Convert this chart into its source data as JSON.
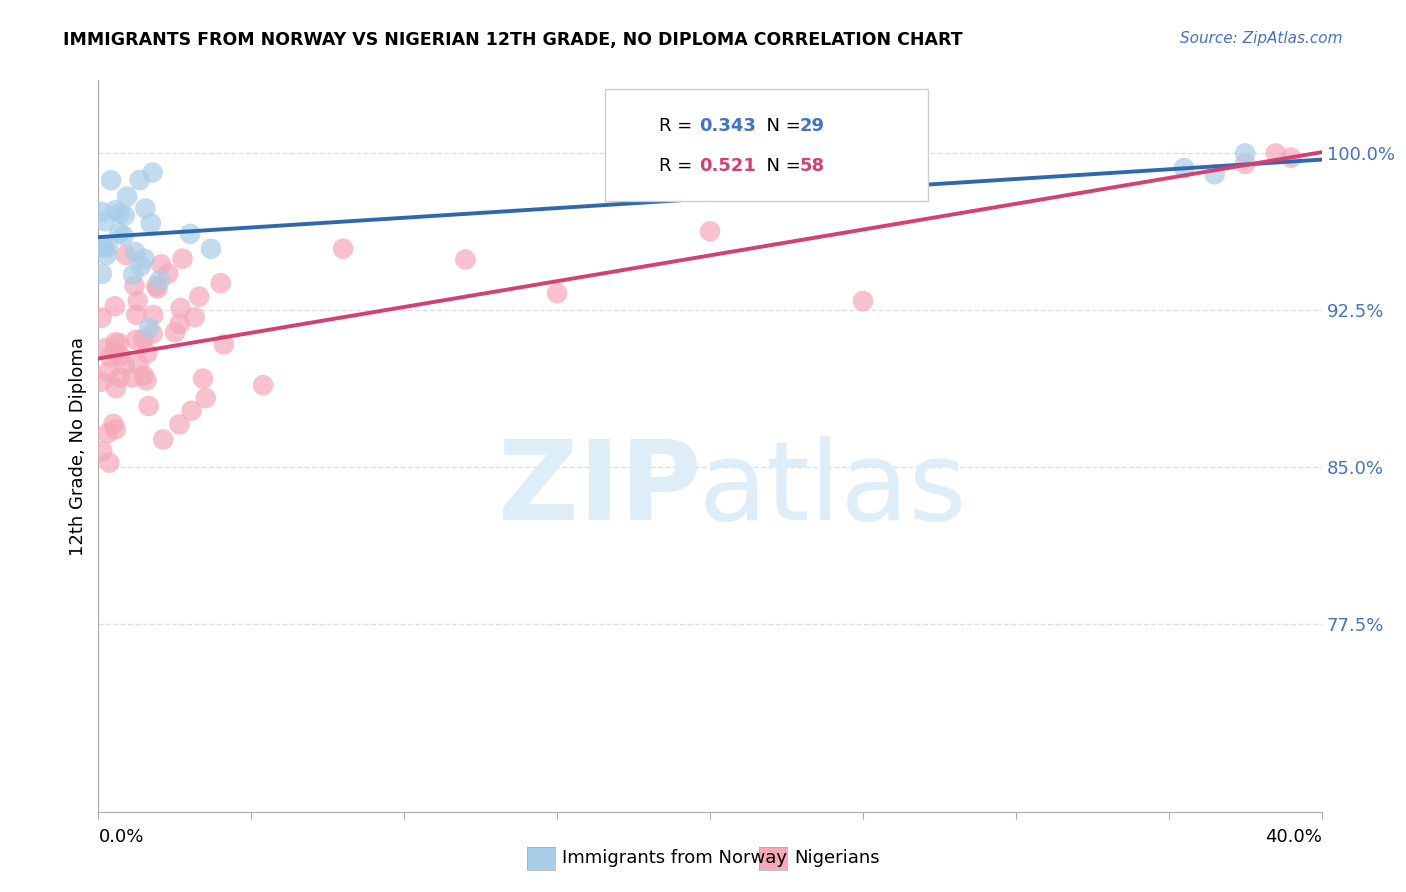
{
  "title": "IMMIGRANTS FROM NORWAY VS NIGERIAN 12TH GRADE, NO DIPLOMA CORRELATION CHART",
  "source": "Source: ZipAtlas.com",
  "ylabel": "12th Grade, No Diploma",
  "legend_label_blue": "Immigrants from Norway",
  "legend_label_pink": "Nigerians",
  "R_blue": 0.343,
  "N_blue": 29,
  "R_pink": 0.521,
  "N_pink": 58,
  "blue_color": "#a8cde8",
  "pink_color": "#f4a8b8",
  "blue_line_color": "#3068b0",
  "pink_line_color": "#d44070",
  "blue_legend_color": "#4472c4",
  "pink_legend_color": "#d44070",
  "xmin": 0.0,
  "xmax": 0.4,
  "ymin": 0.685,
  "ymax": 1.035,
  "ytick_values": [
    0.775,
    0.85,
    0.925,
    1.0
  ],
  "ytick_labels": [
    "77.5%",
    "85.0%",
    "92.5%",
    "100.0%"
  ],
  "grid_color": "#e0e0e0",
  "watermark_color": "#ddeef8",
  "background_color": "#ffffff"
}
